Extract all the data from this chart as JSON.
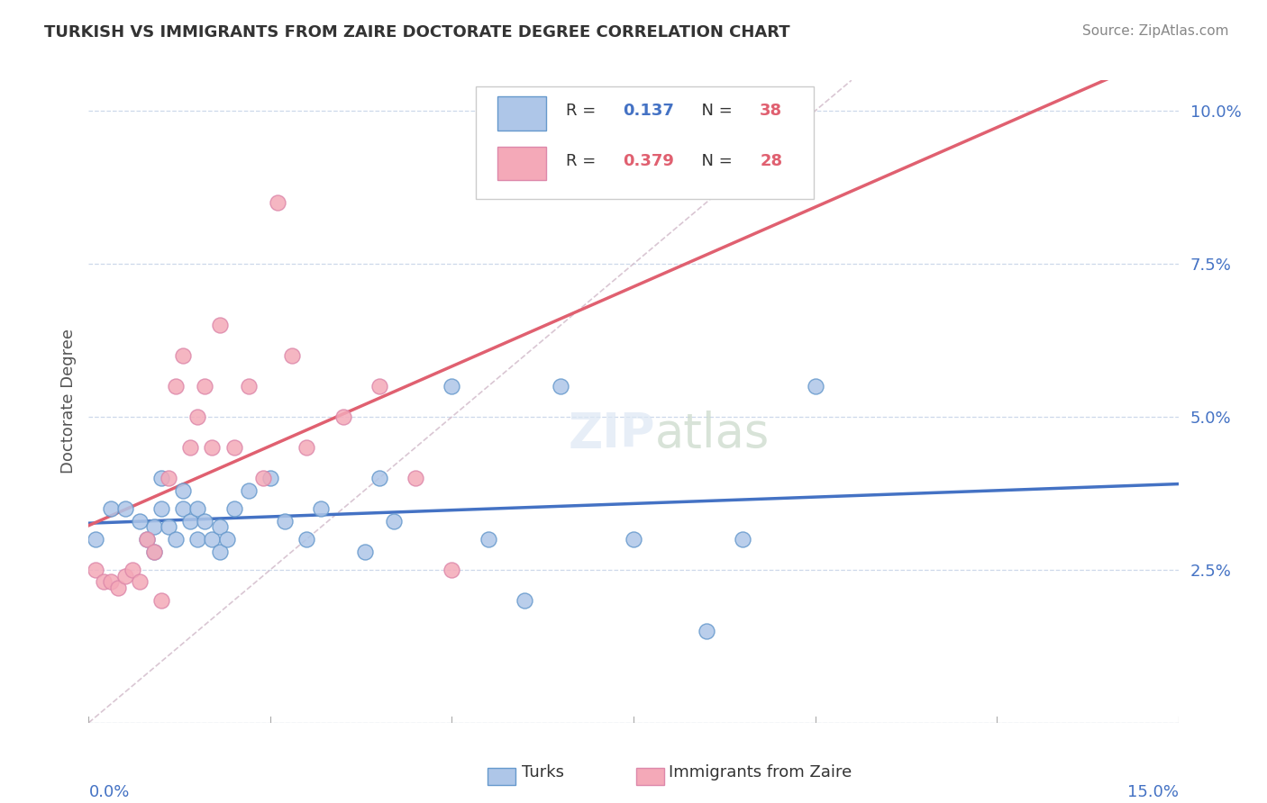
{
  "title": "TURKISH VS IMMIGRANTS FROM ZAIRE DOCTORATE DEGREE CORRELATION CHART",
  "source": "Source: ZipAtlas.com",
  "ylabel": "Doctorate Degree",
  "x_range": [
    0.0,
    0.15
  ],
  "y_range": [
    0.0,
    0.105
  ],
  "y_ticks": [
    0.0,
    0.025,
    0.05,
    0.075,
    0.1
  ],
  "y_tick_labels": [
    "",
    "2.5%",
    "5.0%",
    "7.5%",
    "10.0%"
  ],
  "turks_color": "#aec6e8",
  "zaire_color": "#f4a9b8",
  "turks_edge": "#6699cc",
  "zaire_edge": "#dd88aa",
  "line_turks": "#4472c4",
  "line_zaire": "#e06070",
  "diag_color": "#d0b8c8",
  "background": "#ffffff",
  "grid_color": "#c8d4e8",
  "tick_color": "#4472c4",
  "turks_x": [
    0.001,
    0.003,
    0.005,
    0.007,
    0.008,
    0.009,
    0.009,
    0.01,
    0.01,
    0.011,
    0.012,
    0.013,
    0.013,
    0.014,
    0.015,
    0.015,
    0.016,
    0.017,
    0.018,
    0.018,
    0.019,
    0.02,
    0.022,
    0.025,
    0.027,
    0.03,
    0.032,
    0.038,
    0.04,
    0.042,
    0.05,
    0.055,
    0.06,
    0.065,
    0.075,
    0.085,
    0.09,
    0.1
  ],
  "turks_y": [
    0.03,
    0.035,
    0.035,
    0.033,
    0.03,
    0.028,
    0.032,
    0.035,
    0.04,
    0.032,
    0.03,
    0.035,
    0.038,
    0.033,
    0.03,
    0.035,
    0.033,
    0.03,
    0.028,
    0.032,
    0.03,
    0.035,
    0.038,
    0.04,
    0.033,
    0.03,
    0.035,
    0.028,
    0.04,
    0.033,
    0.055,
    0.03,
    0.02,
    0.055,
    0.03,
    0.015,
    0.03,
    0.055
  ],
  "zaire_x": [
    0.001,
    0.002,
    0.003,
    0.004,
    0.005,
    0.006,
    0.007,
    0.008,
    0.009,
    0.01,
    0.011,
    0.012,
    0.013,
    0.014,
    0.015,
    0.016,
    0.017,
    0.018,
    0.02,
    0.022,
    0.024,
    0.026,
    0.028,
    0.03,
    0.035,
    0.04,
    0.045,
    0.05
  ],
  "zaire_y": [
    0.025,
    0.023,
    0.023,
    0.022,
    0.024,
    0.025,
    0.023,
    0.03,
    0.028,
    0.02,
    0.04,
    0.055,
    0.06,
    0.045,
    0.05,
    0.055,
    0.045,
    0.065,
    0.045,
    0.055,
    0.04,
    0.085,
    0.06,
    0.045,
    0.05,
    0.055,
    0.04,
    0.025
  ],
  "legend_r1_val": "0.137",
  "legend_n1_val": "38",
  "legend_r2_val": "0.379",
  "legend_n2_val": "28"
}
